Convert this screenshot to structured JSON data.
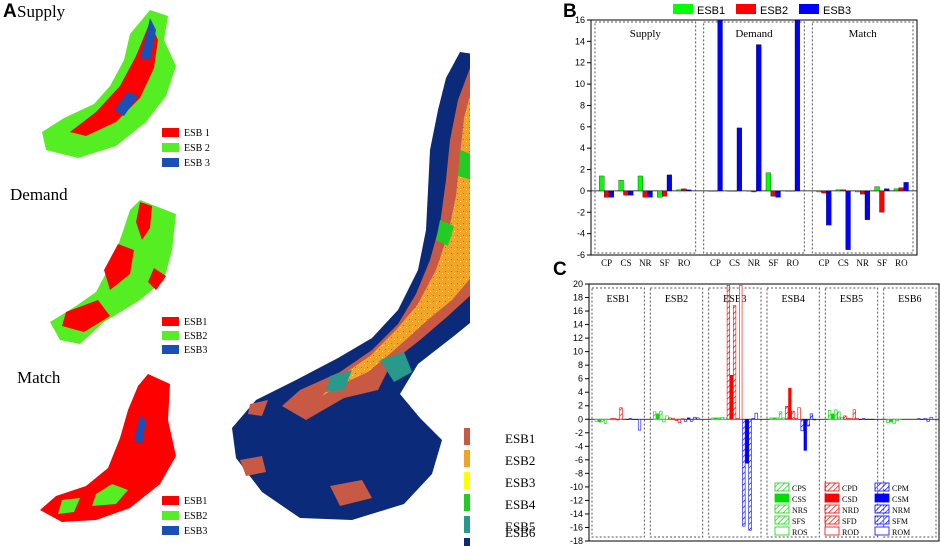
{
  "panel_a": {
    "letter": "A",
    "maps": [
      {
        "title": "Supply",
        "legend": [
          {
            "label": "ESB 1",
            "color": "#ff0000"
          },
          {
            "label": "ESB 2",
            "color": "#55ee22"
          },
          {
            "label": "ESB 3",
            "color": "#1a4fb5"
          }
        ]
      },
      {
        "title": "Demand",
        "legend": [
          {
            "label": "ESB1",
            "color": "#ff0000"
          },
          {
            "label": "ESB2",
            "color": "#55ee22"
          },
          {
            "label": "ESB3",
            "color": "#1a4fb5"
          }
        ]
      },
      {
        "title": "Match",
        "legend": [
          {
            "label": "ESB1",
            "color": "#ff0000"
          },
          {
            "label": "ESB2",
            "color": "#55ee22"
          },
          {
            "label": "ESB3",
            "color": "#1a4fb5"
          }
        ]
      }
    ],
    "big_legend": [
      {
        "label": "ESB1",
        "color": "#c85a45"
      },
      {
        "label": "ESB2",
        "color": "#f0a428"
      },
      {
        "label": "ESB3",
        "color": "#ffff00"
      },
      {
        "label": "ESB4",
        "color": "#22cc22"
      },
      {
        "label": "ESB5",
        "color": "#279a8c"
      },
      {
        "label": "ESB6",
        "color": "#0c2a7a"
      }
    ]
  },
  "chart_data": [
    {
      "id": "B",
      "type": "bar",
      "letter": "B",
      "legend": [
        {
          "name": "ESB1",
          "color": "#00ff00"
        },
        {
          "name": "ESB2",
          "color": "#ff0000"
        },
        {
          "name": "ESB3",
          "color": "#0000ff"
        }
      ],
      "ylim": [
        -6,
        16
      ],
      "yticks": [
        -6,
        -4,
        -2,
        0,
        2,
        4,
        6,
        8,
        10,
        12,
        14,
        16
      ],
      "groups": [
        {
          "label": "Supply",
          "categories": [
            "CP",
            "CS",
            "NR",
            "SF",
            "RO"
          ],
          "series": [
            {
              "name": "ESB1",
              "values": [
                1.4,
                1.0,
                1.4,
                -0.6,
                0.1
              ]
            },
            {
              "name": "ESB2",
              "values": [
                -0.6,
                -0.4,
                -0.6,
                -0.5,
                0.2
              ]
            },
            {
              "name": "ESB3",
              "values": [
                -0.6,
                -0.4,
                -0.6,
                1.5,
                0.1
              ]
            }
          ]
        },
        {
          "label": "Demand",
          "categories": [
            "CP",
            "CS",
            "NR",
            "SF",
            "RO"
          ],
          "series": [
            {
              "name": "ESB1",
              "values": [
                0.0,
                0.0,
                0.0,
                1.7,
                0.0
              ]
            },
            {
              "name": "ESB2",
              "values": [
                0.0,
                0.0,
                -0.1,
                -0.5,
                0.0
              ]
            },
            {
              "name": "ESB3",
              "values": [
                16.0,
                5.9,
                13.7,
                -0.6,
                16.0
              ]
            }
          ]
        },
        {
          "label": "Match",
          "categories": [
            "CP",
            "CS",
            "NR",
            "SF",
            "RO"
          ],
          "series": [
            {
              "name": "ESB1",
              "values": [
                -0.1,
                0.1,
                -0.1,
                0.4,
                0.2
              ]
            },
            {
              "name": "ESB2",
              "values": [
                -0.2,
                0.1,
                -0.3,
                -2.0,
                0.3
              ]
            },
            {
              "name": "ESB3",
              "values": [
                -3.2,
                -5.5,
                -2.7,
                0.2,
                0.8
              ]
            }
          ]
        }
      ]
    },
    {
      "id": "C",
      "type": "bar",
      "letter": "C",
      "ylim": [
        -18,
        20
      ],
      "yticks": [
        -18,
        -16,
        -14,
        -12,
        -10,
        -8,
        -6,
        -4,
        -2,
        0,
        2,
        4,
        6,
        8,
        10,
        12,
        14,
        16,
        18,
        20
      ],
      "series_order": [
        "CPS",
        "CSS",
        "NRS",
        "SFS",
        "ROS",
        "CPD",
        "CSD",
        "NRD",
        "SFD",
        "ROD",
        "CPM",
        "CSM",
        "NRM",
        "SFM",
        "ROM"
      ],
      "groups": [
        {
          "label": "ESB1",
          "values": [
            -0.3,
            -0.4,
            -0.3,
            -0.6,
            0.0,
            0.1,
            0.1,
            -0.1,
            1.7,
            0.0,
            0.0,
            0.1,
            0.0,
            0.0,
            -1.6
          ]
        },
        {
          "label": "ESB2",
          "values": [
            1.1,
            0.8,
            1.2,
            -0.4,
            0.5,
            0.2,
            0.1,
            -0.2,
            -0.5,
            0.1,
            -0.3,
            0.2,
            -0.3,
            0.3,
            0.2
          ]
        },
        {
          "label": "ESB3",
          "values": [
            0.2,
            0.2,
            0.2,
            0.3,
            0.2,
            19.8,
            6.5,
            16.8,
            0.1,
            19.8,
            -15.8,
            -6.5,
            -16.4,
            0.1,
            0.9
          ]
        },
        {
          "label": "ESB4",
          "values": [
            0.2,
            0.2,
            0.2,
            1.1,
            0.2,
            1.9,
            4.6,
            1.2,
            0.1,
            1.7,
            -1.7,
            -4.6,
            -1.0,
            0.8,
            -0.1
          ]
        },
        {
          "label": "ESB5",
          "values": [
            1.3,
            0.8,
            1.4,
            1.1,
            0.3,
            0.5,
            0.1,
            0.1,
            1.4,
            0.1,
            0.0,
            0.1,
            0.0,
            0.0,
            0.0
          ]
        },
        {
          "label": "ESB6",
          "values": [
            -0.5,
            -0.4,
            -0.6,
            -0.2,
            0.0,
            0.0,
            0.0,
            0.0,
            0.0,
            0.0,
            0.1,
            0.0,
            0.1,
            -0.3,
            0.3
          ]
        }
      ],
      "legend": [
        {
          "name": "CPS",
          "color": "#00dd00",
          "pattern": "hatch"
        },
        {
          "name": "CSS",
          "color": "#00dd00",
          "pattern": "solid"
        },
        {
          "name": "NRS",
          "color": "#00dd00",
          "pattern": "hatch"
        },
        {
          "name": "SFS",
          "color": "#00dd00",
          "pattern": "hatch"
        },
        {
          "name": "ROS",
          "color": "#00dd00",
          "pattern": "empty"
        },
        {
          "name": "CPD",
          "color": "#ff0000",
          "pattern": "hatch"
        },
        {
          "name": "CSD",
          "color": "#ff0000",
          "pattern": "solid"
        },
        {
          "name": "NRD",
          "color": "#ff0000",
          "pattern": "hatch"
        },
        {
          "name": "SFD",
          "color": "#ff0000",
          "pattern": "hatch"
        },
        {
          "name": "ROD",
          "color": "#ff0000",
          "pattern": "empty"
        },
        {
          "name": "CPM",
          "color": "#0000ff",
          "pattern": "hatch"
        },
        {
          "name": "CSM",
          "color": "#0000ff",
          "pattern": "solid"
        },
        {
          "name": "NRM",
          "color": "#0000ff",
          "pattern": "hatch"
        },
        {
          "name": "SFM",
          "color": "#0000ff",
          "pattern": "hatch"
        },
        {
          "name": "ROM",
          "color": "#0000ff",
          "pattern": "empty"
        }
      ]
    }
  ]
}
